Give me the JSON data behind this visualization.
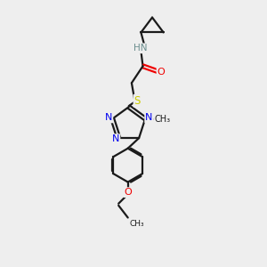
{
  "background_color": "#eeeeee",
  "bond_color": "#1a1a1a",
  "atom_colors": {
    "N": "#0000ee",
    "O": "#ee0000",
    "S": "#cccc00",
    "H": "#6b8e8e",
    "C": "#1a1a1a"
  },
  "figsize": [
    3.0,
    3.0
  ],
  "dpi": 100,
  "xlim": [
    0,
    10
  ],
  "ylim": [
    0,
    14
  ]
}
